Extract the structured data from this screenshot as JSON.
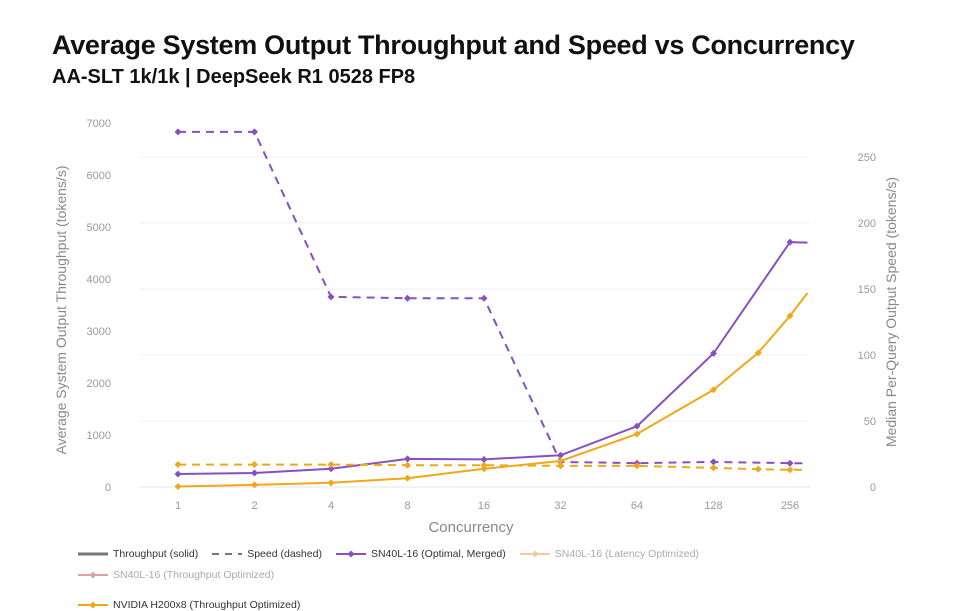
{
  "chart_data": {
    "type": "line",
    "title": "Average System Output Throughput and Speed vs Concurrency",
    "subtitle": "AA-SLT 1k/1k | DeepSeek R1 0528 FP8",
    "xlabel": "Concurrency",
    "ylabel_left": "Average System Output Throughput (tokens/s)",
    "ylabel_right": "Median Per-Query Output Speed (tokens/s)",
    "x_scale": "log2",
    "x_ticks": [
      "1",
      "2",
      "4",
      "8",
      "16",
      "32",
      "64",
      "128",
      "256"
    ],
    "y_left_ticks": [
      "0",
      "1000",
      "2000",
      "3000",
      "4000",
      "5000",
      "6000",
      "7000"
    ],
    "y_left_range": [
      0,
      7000
    ],
    "y_right_ticks": [
      "0",
      "50",
      "100",
      "150",
      "200",
      "250"
    ],
    "y_right_range": [
      0,
      250
    ],
    "grid": "horizontal (right axis)",
    "legend_placement": "bottom",
    "legend": [
      {
        "label": "Throughput (solid)",
        "style": "solid",
        "color": "#777777"
      },
      {
        "label": "Speed (dashed)",
        "style": "dashed",
        "color": "#777777"
      },
      {
        "label": "SN40L-16 (Optimal, Merged)",
        "color": "#8650c0"
      },
      {
        "label": "SN40L-16 (Latency Optimized)",
        "color": "#f5c9a0",
        "faded": true
      },
      {
        "label": "SN40L-16 (Throughput Optimized)",
        "color": "#e0a0a0",
        "faded": true
      },
      {
        "label": "NVIDIA H200x8 (Throughput Optimized)",
        "color": "#f0a818"
      }
    ],
    "series": [
      {
        "name": "SN40L-16 (Optimal, Merged)",
        "metric": "throughput",
        "axis": "left",
        "color": "#8650c0",
        "dash": false,
        "x": [
          1,
          2,
          4,
          8,
          16,
          32,
          64,
          128,
          256,
          300
        ],
        "y": [
          250,
          270,
          350,
          540,
          530,
          610,
          1170,
          2570,
          4710,
          4700
        ],
        "marker_x": [
          1,
          2,
          4,
          8,
          16,
          32,
          64,
          128,
          256
        ]
      },
      {
        "name": "SN40L-16 (Optimal, Merged)",
        "metric": "speed",
        "axis": "right",
        "color": "#8650c0",
        "dash": true,
        "x": [
          1,
          2,
          4,
          8,
          16,
          32,
          64,
          128,
          256,
          300
        ],
        "y": [
          269,
          269,
          144,
          143,
          143,
          19,
          18,
          19,
          18,
          18
        ],
        "marker_x": [
          1,
          2,
          4,
          8,
          16,
          32,
          64,
          128,
          256
        ]
      },
      {
        "name": "NVIDIA H200x8 (Throughput Optimized)",
        "metric": "throughput",
        "axis": "left",
        "color": "#f0a818",
        "dash": false,
        "x": [
          1,
          2,
          4,
          8,
          16,
          32,
          64,
          128,
          192,
          256,
          300
        ],
        "y": [
          10,
          40,
          80,
          170,
          350,
          500,
          1020,
          1870,
          2580,
          3290,
          3730
        ],
        "marker_x": [
          1,
          2,
          4,
          8,
          16,
          32,
          64,
          128,
          192,
          256
        ]
      },
      {
        "name": "NVIDIA H200x8 (Throughput Optimized)",
        "metric": "speed",
        "axis": "right",
        "color": "#f0a818",
        "dash": true,
        "x": [
          1,
          2,
          4,
          8,
          16,
          32,
          64,
          128,
          192,
          256,
          300
        ],
        "y": [
          17,
          17,
          17,
          16.5,
          16.5,
          16,
          16,
          14.5,
          13.5,
          13,
          13
        ],
        "marker_x": [
          1,
          2,
          4,
          8,
          16,
          32,
          64,
          128,
          192,
          256
        ]
      }
    ]
  }
}
